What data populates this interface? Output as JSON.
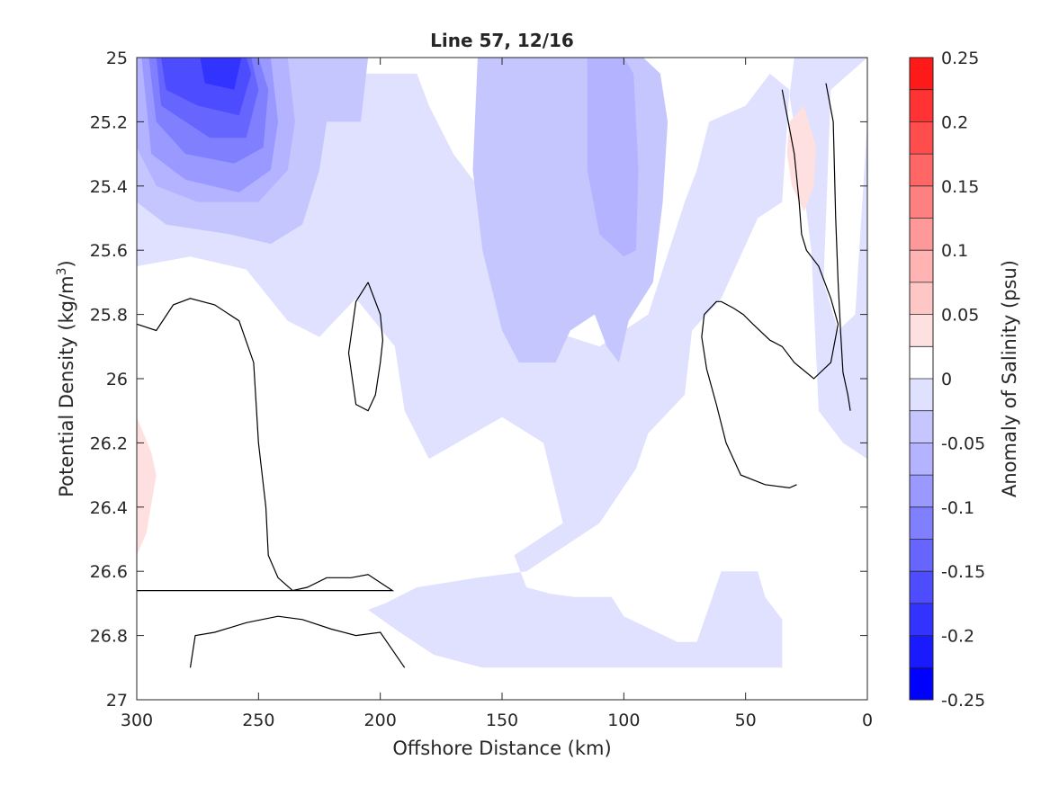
{
  "chart_data": {
    "type": "heatmap",
    "title": "Line 57, 12/16",
    "xlabel": "Offshore Distance (km)",
    "ylabel": "Potential Density (kg/m",
    "ylabel_sup": "3",
    "ylabel_close": ")",
    "xlim": [
      300,
      0
    ],
    "ylim": [
      25,
      27
    ],
    "x_reversed": true,
    "y_reversed": true,
    "xticks": [
      300,
      250,
      200,
      150,
      100,
      50,
      0
    ],
    "xtick_labels": [
      "300",
      "250",
      "200",
      "150",
      "100",
      "50",
      "0"
    ],
    "yticks": [
      25,
      25.2,
      25.4,
      25.6,
      25.8,
      26,
      26.2,
      26.4,
      26.6,
      26.8,
      27
    ],
    "ytick_labels": [
      "25",
      "25.2",
      "25.4",
      "25.6",
      "25.8",
      "26",
      "26.2",
      "26.4",
      "26.6",
      "26.8",
      "27"
    ],
    "colorbar": {
      "label": "Anomaly of Salinity (psu)",
      "range": [
        -0.25,
        0.25
      ],
      "levels": [
        -0.25,
        -0.225,
        -0.2,
        -0.175,
        -0.15,
        -0.125,
        -0.1,
        -0.075,
        -0.05,
        -0.025,
        0,
        0.025,
        0.05,
        0.075,
        0.1,
        0.125,
        0.15,
        0.175,
        0.2,
        0.225,
        0.25
      ],
      "colors": [
        "#0000ff",
        "#1a1aff",
        "#3333ff",
        "#4d4dff",
        "#6666ff",
        "#8080ff",
        "#9999ff",
        "#b3b3ff",
        "#c6c6ff",
        "#e0e0ff",
        "#ffffff",
        "#ffffff",
        "#ffe0e0",
        "#ffc6c6",
        "#ffb3b3",
        "#ff9999",
        "#ff8080",
        "#ff6666",
        "#ff4d4d",
        "#ff3333",
        "#ff1a1a",
        "#ff0000"
      ],
      "ticks": [
        0.25,
        0.2,
        0.15,
        0.1,
        0.05,
        0,
        -0.05,
        -0.1,
        -0.15,
        -0.2,
        -0.25
      ],
      "tick_labels": [
        "0.25",
        "0.2",
        "0.15",
        "0.1",
        "0.05",
        "0",
        "-0.05",
        "-0.1",
        "-0.15",
        "-0.2",
        "-0.25"
      ]
    },
    "regions": [
      {
        "value": -0.0375,
        "color": "#e0e0ff",
        "points": [
          [
            300,
            25
          ],
          [
            30,
            25
          ],
          [
            32,
            25.12
          ],
          [
            28,
            25.3
          ],
          [
            23,
            25.6
          ],
          [
            20,
            26.1
          ],
          [
            10,
            26.2
          ],
          [
            0,
            26.25
          ],
          [
            0,
            25.2
          ],
          [
            5,
            25.8
          ],
          [
            12,
            25.85
          ],
          [
            18,
            25.7
          ],
          [
            15,
            25.1
          ],
          [
            0,
            25
          ],
          [
            300,
            25
          ]
        ]
      },
      {
        "value": -0.0375,
        "color": "#e0e0ff",
        "points": [
          [
            300,
            25
          ],
          [
            300,
            25.65
          ],
          [
            278,
            25.62
          ],
          [
            255,
            25.66
          ],
          [
            238,
            25.82
          ],
          [
            225,
            25.87
          ],
          [
            210,
            25.75
          ],
          [
            194,
            25.9
          ],
          [
            190,
            26.1
          ],
          [
            180,
            26.25
          ],
          [
            150,
            26.12
          ],
          [
            133,
            26.2
          ],
          [
            125,
            26.45
          ],
          [
            145,
            26.55
          ],
          [
            140,
            26.65
          ],
          [
            130,
            26.67
          ],
          [
            120,
            26.68
          ],
          [
            105,
            26.68
          ],
          [
            100,
            26.74
          ],
          [
            78,
            26.82
          ],
          [
            70,
            26.82
          ],
          [
            60,
            26.6
          ],
          [
            45,
            26.6
          ],
          [
            42,
            26.68
          ],
          [
            35,
            26.75
          ],
          [
            35,
            26.9
          ],
          [
            158,
            26.9
          ],
          [
            178,
            26.86
          ],
          [
            192,
            26.79
          ],
          [
            205,
            26.72
          ],
          [
            198,
            26.7
          ],
          [
            185,
            26.65
          ],
          [
            160,
            26.62
          ],
          [
            140,
            26.6
          ],
          [
            120,
            26.5
          ],
          [
            110,
            26.45
          ],
          [
            95,
            26.28
          ],
          [
            90,
            26.17
          ],
          [
            75,
            26.05
          ],
          [
            72,
            25.85
          ],
          [
            60,
            25.75
          ],
          [
            45,
            25.5
          ],
          [
            35,
            25.45
          ],
          [
            32,
            25.1
          ],
          [
            40,
            25.05
          ],
          [
            50,
            25.15
          ],
          [
            65,
            25.2
          ],
          [
            70,
            25.35
          ],
          [
            75,
            25.45
          ],
          [
            90,
            25.8
          ],
          [
            110,
            25.9
          ],
          [
            130,
            25.85
          ],
          [
            140,
            25.6
          ],
          [
            145,
            25.5
          ],
          [
            160,
            25.4
          ],
          [
            170,
            25.3
          ],
          [
            180,
            25.15
          ],
          [
            185,
            25.05
          ],
          [
            300,
            25.05
          ]
        ]
      },
      {
        "value": -0.0625,
        "color": "#c6c6ff",
        "points": [
          [
            300,
            25
          ],
          [
            300,
            25.45
          ],
          [
            288,
            25.52
          ],
          [
            262,
            25.55
          ],
          [
            245,
            25.58
          ],
          [
            232,
            25.52
          ],
          [
            225,
            25.35
          ],
          [
            222,
            25.2
          ],
          [
            208,
            25.2
          ],
          [
            205,
            25
          ],
          [
            300,
            25
          ]
        ]
      },
      {
        "value": -0.0625,
        "color": "#c6c6ff",
        "points": [
          [
            160,
            25
          ],
          [
            162,
            25.35
          ],
          [
            158,
            25.6
          ],
          [
            150,
            25.85
          ],
          [
            143,
            25.95
          ],
          [
            128,
            25.95
          ],
          [
            122,
            25.85
          ],
          [
            112,
            25.8
          ],
          [
            107,
            25.9
          ],
          [
            102,
            25.95
          ],
          [
            98,
            25.82
          ],
          [
            88,
            25.7
          ],
          [
            84,
            25.45
          ],
          [
            82,
            25.2
          ],
          [
            85,
            25.05
          ],
          [
            92,
            25
          ],
          [
            160,
            25
          ]
        ]
      },
      {
        "value": -0.0875,
        "color": "#b3b3ff",
        "points": [
          [
            300,
            25
          ],
          [
            300,
            25.28
          ],
          [
            292,
            25.4
          ],
          [
            275,
            25.45
          ],
          [
            250,
            25.45
          ],
          [
            238,
            25.35
          ],
          [
            235,
            25.2
          ],
          [
            238,
            25
          ],
          [
            300,
            25
          ]
        ]
      },
      {
        "value": -0.0875,
        "color": "#b3b3ff",
        "points": [
          [
            115,
            25
          ],
          [
            115,
            25.35
          ],
          [
            110,
            25.55
          ],
          [
            100,
            25.62
          ],
          [
            95,
            25.6
          ],
          [
            94,
            25.35
          ],
          [
            96,
            25.05
          ],
          [
            100,
            25
          ],
          [
            115,
            25
          ]
        ]
      },
      {
        "value": -0.1125,
        "color": "#9999ff",
        "points": [
          [
            298,
            25
          ],
          [
            294,
            25.3
          ],
          [
            280,
            25.38
          ],
          [
            258,
            25.42
          ],
          [
            245,
            25.35
          ],
          [
            242,
            25.2
          ],
          [
            245,
            25
          ],
          [
            298,
            25
          ]
        ]
      },
      {
        "value": -0.1375,
        "color": "#8080ff",
        "points": [
          [
            295,
            25
          ],
          [
            292,
            25.2
          ],
          [
            280,
            25.3
          ],
          [
            260,
            25.33
          ],
          [
            248,
            25.28
          ],
          [
            246,
            25.1
          ],
          [
            250,
            25
          ],
          [
            295,
            25
          ]
        ]
      },
      {
        "value": -0.1625,
        "color": "#6666ff",
        "points": [
          [
            292,
            25
          ],
          [
            290,
            25.15
          ],
          [
            270,
            25.25
          ],
          [
            255,
            25.25
          ],
          [
            250,
            25.1
          ],
          [
            253,
            25
          ],
          [
            292,
            25
          ]
        ]
      },
      {
        "value": -0.1875,
        "color": "#4d4dff",
        "points": [
          [
            290,
            25
          ],
          [
            288,
            25.1
          ],
          [
            275,
            25.15
          ],
          [
            258,
            25.18
          ],
          [
            253,
            25.05
          ],
          [
            255,
            25
          ],
          [
            290,
            25
          ]
        ]
      },
      {
        "value": -0.2125,
        "color": "#3333ff",
        "points": [
          [
            274,
            25
          ],
          [
            272,
            25.08
          ],
          [
            260,
            25.1
          ],
          [
            257,
            25
          ],
          [
            274,
            25
          ]
        ]
      },
      {
        "value": 0.0375,
        "color": "#ffe0e0",
        "points": [
          [
            300,
            26.12
          ],
          [
            294,
            26.23
          ],
          [
            292,
            26.3
          ],
          [
            296,
            26.48
          ],
          [
            300,
            26.55
          ]
        ]
      },
      {
        "value": 0.0375,
        "color": "#ffe0e0",
        "points": [
          [
            32,
            25.2
          ],
          [
            26,
            25.15
          ],
          [
            21,
            25.28
          ],
          [
            22,
            25.4
          ],
          [
            26,
            25.48
          ],
          [
            31,
            25.4
          ],
          [
            33,
            25.3
          ],
          [
            32,
            25.2
          ]
        ]
      }
    ],
    "contours": [
      {
        "value": 0,
        "points": [
          [
            300,
            25.83
          ],
          [
            292,
            25.85
          ],
          [
            285,
            25.77
          ],
          [
            278,
            25.75
          ],
          [
            268,
            25.77
          ],
          [
            258,
            25.82
          ],
          [
            252,
            25.95
          ],
          [
            250,
            26.2
          ],
          [
            247,
            26.4
          ],
          [
            246,
            26.55
          ],
          [
            242,
            26.62
          ],
          [
            236,
            26.66
          ],
          [
            230,
            26.65
          ],
          [
            222,
            26.62
          ],
          [
            212,
            26.62
          ],
          [
            205,
            26.61
          ],
          [
            195,
            26.66
          ],
          [
            300,
            26.66
          ]
        ]
      },
      {
        "value": 0,
        "points": [
          [
            278,
            26.9
          ],
          [
            276,
            26.8
          ],
          [
            268,
            26.79
          ],
          [
            255,
            26.76
          ],
          [
            242,
            26.74
          ],
          [
            232,
            26.75
          ],
          [
            220,
            26.78
          ],
          [
            210,
            26.8
          ],
          [
            200,
            26.79
          ],
          [
            190,
            26.9
          ]
        ]
      },
      {
        "value": 0,
        "points": [
          [
            205,
            25.7
          ],
          [
            210,
            25.76
          ],
          [
            213,
            25.92
          ],
          [
            210,
            26.08
          ],
          [
            205,
            26.1
          ],
          [
            202,
            26.05
          ],
          [
            200,
            25.95
          ],
          [
            199,
            25.88
          ],
          [
            200,
            25.8
          ],
          [
            205,
            25.7
          ]
        ]
      },
      {
        "value": 0,
        "points": [
          [
            35,
            25.1
          ],
          [
            30,
            25.3
          ],
          [
            28,
            25.45
          ],
          [
            27,
            25.55
          ],
          [
            25,
            25.6
          ],
          [
            20,
            25.65
          ],
          [
            15,
            25.75
          ],
          [
            12,
            25.83
          ],
          [
            15,
            25.95
          ],
          [
            22,
            26.0
          ],
          [
            30,
            25.95
          ],
          [
            35,
            25.9
          ],
          [
            40,
            25.88
          ],
          [
            47,
            25.83
          ],
          [
            51,
            25.8
          ],
          [
            55,
            25.78
          ],
          [
            60,
            25.76
          ],
          [
            62,
            25.76
          ],
          [
            67,
            25.8
          ],
          [
            68,
            25.87
          ],
          [
            66,
            25.97
          ],
          [
            62,
            26.08
          ],
          [
            58,
            26.2
          ],
          [
            52,
            26.3
          ],
          [
            42,
            26.33
          ],
          [
            32,
            26.34
          ],
          [
            29,
            26.33
          ]
        ]
      },
      {
        "value": 0,
        "points": [
          [
            17,
            25.08
          ],
          [
            14,
            25.2
          ],
          [
            13,
            25.5
          ],
          [
            12,
            25.7
          ],
          [
            11,
            25.85
          ],
          [
            10,
            25.98
          ],
          [
            8,
            26.05
          ],
          [
            7,
            26.1
          ]
        ]
      }
    ]
  }
}
